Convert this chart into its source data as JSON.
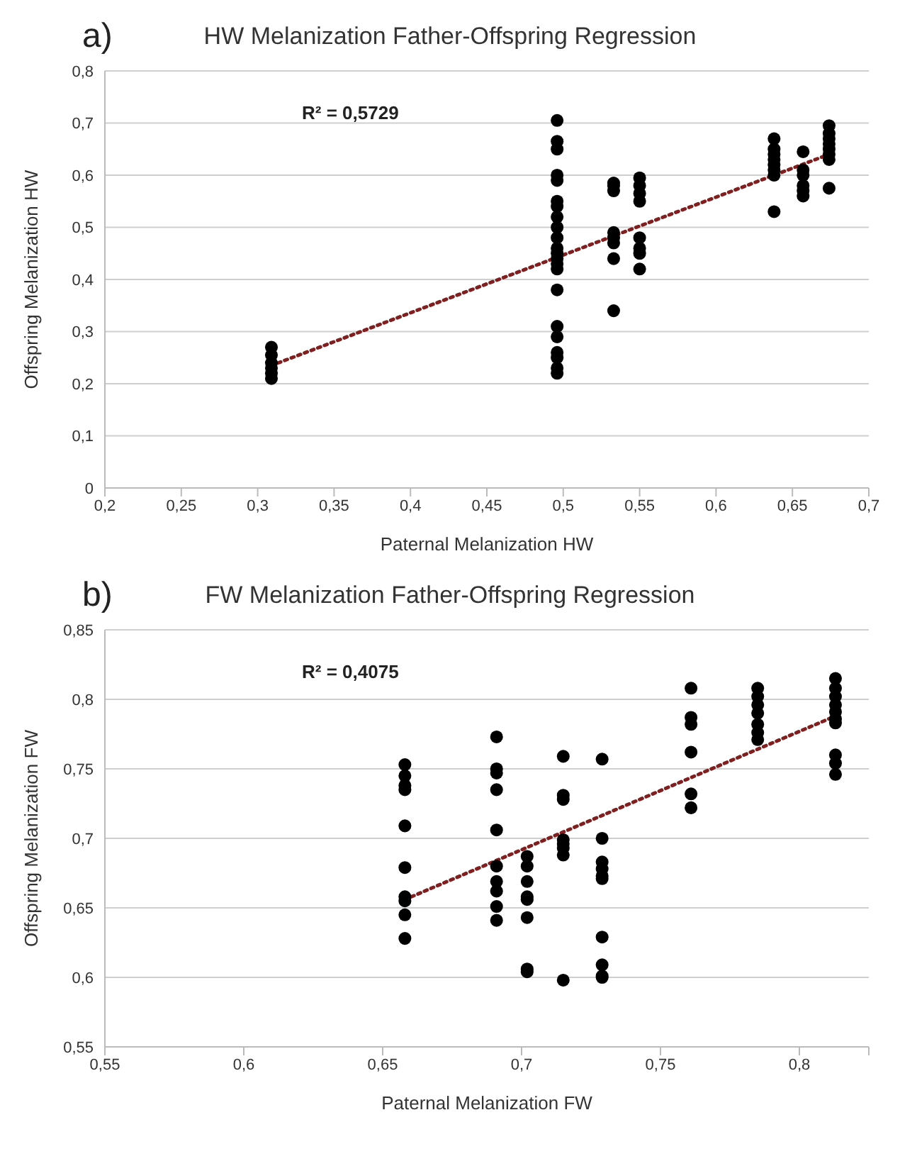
{
  "chart_data": [
    {
      "type": "scatter",
      "title": "HW Melanization Father-Offspring Regression",
      "xlabel": "Paternal Melanization HW",
      "ylabel": "Offspring Melanization HW",
      "annotations": [
        "a)",
        "R² = 0,5729"
      ],
      "xlim": [
        0.2,
        0.7
      ],
      "xticks": [
        {
          "value": 0.2,
          "label": "0,2"
        },
        {
          "value": 0.25,
          "label": "0,25"
        },
        {
          "value": 0.3,
          "label": "0,3"
        },
        {
          "value": 0.35,
          "label": "0,35"
        },
        {
          "value": 0.4,
          "label": "0,4"
        },
        {
          "value": 0.45,
          "label": "0,45"
        },
        {
          "value": 0.5,
          "label": "0,5"
        },
        {
          "value": 0.55,
          "label": "0,55"
        },
        {
          "value": 0.6,
          "label": "0,6"
        },
        {
          "value": 0.65,
          "label": "0,65"
        },
        {
          "value": 0.7,
          "label": "0,7"
        }
      ],
      "ylim": [
        0,
        0.8
      ],
      "yticks": [
        0,
        {
          "value": 0.1,
          "label": "0,1"
        },
        {
          "value": 0.2,
          "label": "0,2"
        },
        {
          "value": 0.3,
          "label": "0,3"
        },
        {
          "value": 0.4,
          "label": "0,4"
        },
        {
          "value": 0.5,
          "label": "0,5"
        },
        {
          "value": 0.6,
          "label": "0,6"
        },
        {
          "value": 0.7,
          "label": "0,7"
        },
        {
          "value": 0.8,
          "label": "0,8"
        }
      ],
      "grid": "y",
      "marker": "circle",
      "series": [
        {
          "color": "#000000",
          "x": [
            0.309,
            0.309,
            0.309,
            0.309,
            0.309,
            0.309,
            0.496,
            0.496,
            0.496,
            0.496,
            0.496,
            0.496,
            0.496,
            0.496,
            0.496,
            0.496,
            0.496,
            0.496,
            0.496,
            0.496,
            0.496,
            0.496,
            0.496,
            0.496,
            0.496,
            0.496,
            0.496,
            0.496,
            0.533,
            0.533,
            0.533,
            0.533,
            0.533,
            0.533,
            0.533,
            0.533,
            0.55,
            0.55,
            0.55,
            0.55,
            0.55,
            0.55,
            0.55,
            0.55,
            0.638,
            0.638,
            0.638,
            0.638,
            0.638,
            0.638,
            0.638,
            0.638,
            0.657,
            0.657,
            0.657,
            0.657,
            0.657,
            0.657,
            0.674,
            0.674,
            0.674,
            0.674,
            0.674,
            0.674,
            0.674,
            0.674
          ],
          "values": [
            0.27,
            0.255,
            0.24,
            0.23,
            0.22,
            0.21,
            0.705,
            0.665,
            0.65,
            0.6,
            0.59,
            0.55,
            0.54,
            0.52,
            0.5,
            0.48,
            0.46,
            0.45,
            0.44,
            0.43,
            0.42,
            0.38,
            0.31,
            0.29,
            0.26,
            0.25,
            0.23,
            0.22,
            0.585,
            0.58,
            0.57,
            0.49,
            0.48,
            0.47,
            0.44,
            0.34,
            0.595,
            0.58,
            0.565,
            0.55,
            0.48,
            0.46,
            0.45,
            0.42,
            0.67,
            0.65,
            0.64,
            0.63,
            0.62,
            0.61,
            0.6,
            0.53,
            0.645,
            0.61,
            0.6,
            0.58,
            0.57,
            0.56,
            0.695,
            0.68,
            0.67,
            0.66,
            0.65,
            0.64,
            0.63,
            0.575
          ]
        },
        {
          "type": "line",
          "marker": "none",
          "color": "#7f1f1f",
          "line_style": "dotted",
          "x": [
            0.309,
            0.674
          ],
          "values": [
            0.235,
            0.64
          ]
        }
      ]
    },
    {
      "type": "scatter",
      "title": "FW Melanization Father-Offspring Regression",
      "xlabel": "Paternal Melanization FW",
      "ylabel": "Offspring Melanization FW",
      "annotations": [
        "b)",
        "R² = 0,4075"
      ],
      "xlim": [
        0.55,
        0.825
      ],
      "xticks": [
        {
          "value": 0.55,
          "label": "0,55"
        },
        {
          "value": 0.6,
          "label": "0,6"
        },
        {
          "value": 0.65,
          "label": "0,65"
        },
        {
          "value": 0.7,
          "label": "0,7"
        },
        {
          "value": 0.75,
          "label": "0,75"
        },
        {
          "value": 0.8,
          "label": "0,8"
        },
        {
          "value": 0.825,
          "label": null
        }
      ],
      "ylim": [
        0.55,
        0.85
      ],
      "yticks": [
        {
          "value": 0.55,
          "label": "0,55"
        },
        {
          "value": 0.6,
          "label": "0,6"
        },
        {
          "value": 0.65,
          "label": "0,65"
        },
        {
          "value": 0.7,
          "label": "0,7"
        },
        {
          "value": 0.75,
          "label": "0,75"
        },
        {
          "value": 0.8,
          "label": "0,8"
        },
        {
          "value": 0.85,
          "label": "0,85"
        }
      ],
      "grid": "y",
      "marker": "circle",
      "series": [
        {
          "color": "#000000",
          "x": [
            0.658,
            0.658,
            0.658,
            0.658,
            0.658,
            0.658,
            0.658,
            0.658,
            0.658,
            0.658,
            0.691,
            0.691,
            0.691,
            0.691,
            0.691,
            0.691,
            0.691,
            0.691,
            0.691,
            0.691,
            0.702,
            0.702,
            0.702,
            0.702,
            0.702,
            0.702,
            0.702,
            0.702,
            0.715,
            0.715,
            0.715,
            0.715,
            0.715,
            0.715,
            0.715,
            0.715,
            0.729,
            0.729,
            0.729,
            0.729,
            0.729,
            0.729,
            0.729,
            0.729,
            0.729,
            0.729,
            0.761,
            0.761,
            0.761,
            0.761,
            0.761,
            0.761,
            0.785,
            0.785,
            0.785,
            0.785,
            0.785,
            0.785,
            0.785,
            0.813,
            0.813,
            0.813,
            0.813,
            0.813,
            0.813,
            0.813,
            0.813,
            0.813,
            0.813
          ],
          "values": [
            0.753,
            0.745,
            0.738,
            0.735,
            0.709,
            0.679,
            0.658,
            0.655,
            0.645,
            0.628,
            0.773,
            0.75,
            0.747,
            0.735,
            0.706,
            0.68,
            0.669,
            0.662,
            0.651,
            0.641,
            0.687,
            0.68,
            0.669,
            0.658,
            0.656,
            0.643,
            0.606,
            0.604,
            0.759,
            0.731,
            0.728,
            0.699,
            0.696,
            0.693,
            0.688,
            0.598,
            0.757,
            0.7,
            0.683,
            0.678,
            0.673,
            0.671,
            0.629,
            0.609,
            0.601,
            0.6,
            0.808,
            0.787,
            0.782,
            0.762,
            0.732,
            0.722,
            0.808,
            0.802,
            0.796,
            0.79,
            0.782,
            0.776,
            0.771,
            0.815,
            0.808,
            0.802,
            0.796,
            0.791,
            0.786,
            0.783,
            0.76,
            0.754,
            0.746
          ]
        },
        {
          "type": "line",
          "marker": "none",
          "color": "#7f1f1f",
          "line_style": "dotted",
          "x": [
            0.658,
            0.813
          ],
          "values": [
            0.656,
            0.788
          ]
        }
      ]
    }
  ]
}
